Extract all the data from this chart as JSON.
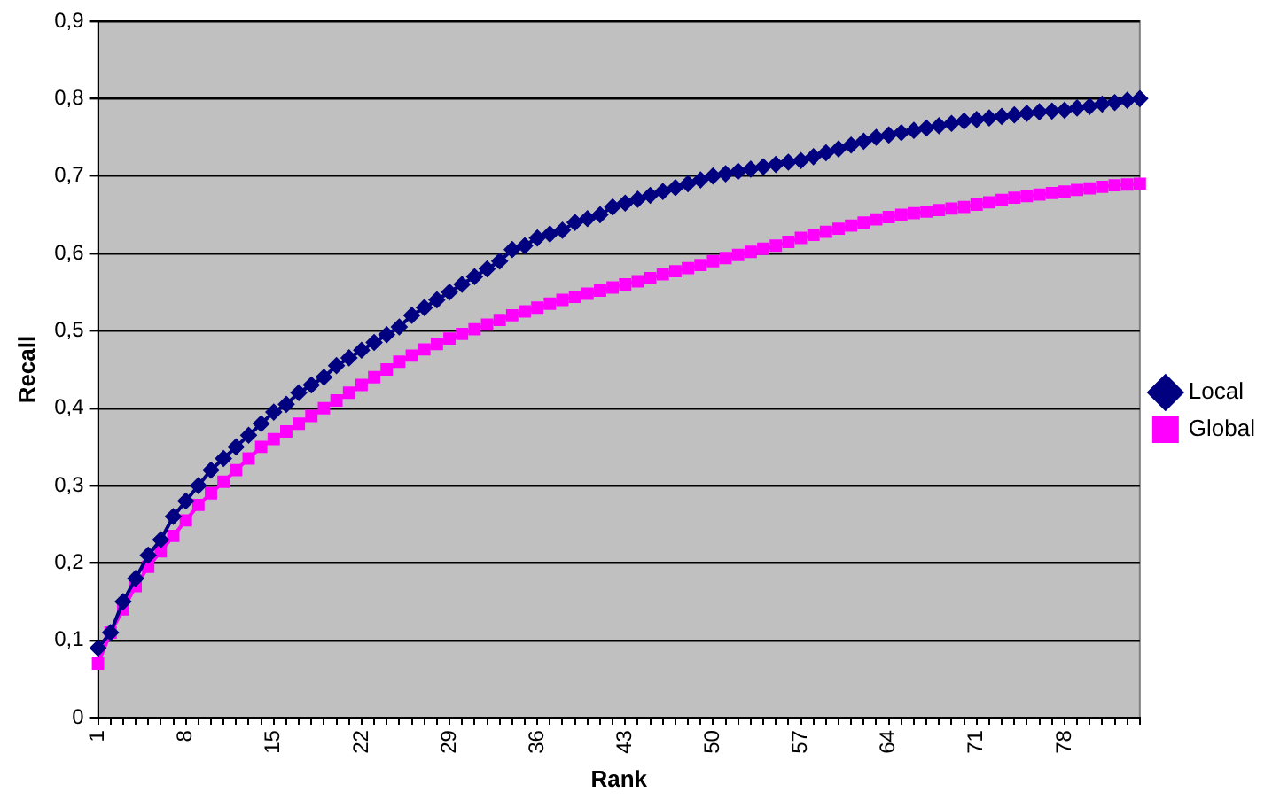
{
  "chart_data": {
    "type": "line",
    "xlabel": "Rank",
    "ylabel": "Recall",
    "categories": [
      "1",
      null,
      null,
      null,
      null,
      null,
      null,
      "8",
      null,
      null,
      null,
      null,
      null,
      null,
      "15",
      null,
      null,
      null,
      null,
      null,
      null,
      "22",
      null,
      null,
      null,
      null,
      null,
      null,
      "29",
      null,
      null,
      null,
      null,
      null,
      null,
      "36",
      null,
      null,
      null,
      null,
      null,
      null,
      "43",
      null,
      null,
      null,
      null,
      null,
      null,
      "50",
      null,
      null,
      null,
      null,
      null,
      null,
      "57",
      null,
      null,
      null,
      null,
      null,
      null,
      "64",
      null,
      null,
      null,
      null,
      null,
      null,
      "71",
      null,
      null,
      null,
      null,
      null,
      null,
      "78",
      null,
      null,
      null,
      null,
      null,
      null
    ],
    "series": [
      {
        "name": "Local",
        "color": "#000080",
        "marker": "diamond",
        "values": [
          0.09,
          0.11,
          0.15,
          0.18,
          0.21,
          0.23,
          0.26,
          0.28,
          0.3,
          0.32,
          0.335,
          0.35,
          0.365,
          0.38,
          0.395,
          0.405,
          0.42,
          0.43,
          0.44,
          0.455,
          0.465,
          0.475,
          0.485,
          0.495,
          0.505,
          0.52,
          0.53,
          0.54,
          0.55,
          0.56,
          0.57,
          0.58,
          0.59,
          0.605,
          0.61,
          0.62,
          0.625,
          0.63,
          0.64,
          0.645,
          0.65,
          0.66,
          0.665,
          0.67,
          0.675,
          0.68,
          0.685,
          0.69,
          0.695,
          0.7,
          0.703,
          0.706,
          0.709,
          0.712,
          0.715,
          0.718,
          0.72,
          0.725,
          0.73,
          0.735,
          0.74,
          0.745,
          0.75,
          0.753,
          0.756,
          0.759,
          0.762,
          0.765,
          0.768,
          0.771,
          0.773,
          0.775,
          0.777,
          0.779,
          0.781,
          0.783,
          0.784,
          0.785,
          0.788,
          0.79,
          0.793,
          0.795,
          0.798,
          0.8
        ]
      },
      {
        "name": "Global",
        "color": "#ff00ff",
        "marker": "square",
        "values": [
          0.07,
          0.11,
          0.14,
          0.17,
          0.195,
          0.215,
          0.235,
          0.255,
          0.275,
          0.29,
          0.305,
          0.32,
          0.335,
          0.35,
          0.36,
          0.37,
          0.38,
          0.39,
          0.4,
          0.41,
          0.42,
          0.43,
          0.44,
          0.45,
          0.46,
          0.468,
          0.476,
          0.483,
          0.49,
          0.496,
          0.502,
          0.508,
          0.514,
          0.52,
          0.525,
          0.53,
          0.535,
          0.54,
          0.544,
          0.548,
          0.552,
          0.556,
          0.56,
          0.564,
          0.568,
          0.573,
          0.577,
          0.581,
          0.585,
          0.59,
          0.594,
          0.598,
          0.602,
          0.606,
          0.61,
          0.615,
          0.62,
          0.624,
          0.628,
          0.632,
          0.636,
          0.64,
          0.644,
          0.647,
          0.65,
          0.652,
          0.654,
          0.656,
          0.658,
          0.66,
          0.663,
          0.666,
          0.669,
          0.672,
          0.674,
          0.676,
          0.678,
          0.68,
          0.682,
          0.684,
          0.686,
          0.688,
          0.689,
          0.69
        ]
      }
    ],
    "ylim": [
      0,
      0.9
    ],
    "yticks": [
      0,
      {
        "value": 0.1,
        "label": "0,1"
      },
      {
        "value": 0.2,
        "label": "0,2"
      },
      {
        "value": 0.3,
        "label": "0,3"
      },
      {
        "value": 0.4,
        "label": "0,4"
      },
      {
        "value": 0.5,
        "label": "0,5"
      },
      {
        "value": 0.6,
        "label": "0,6"
      },
      {
        "value": 0.7,
        "label": "0,7"
      },
      {
        "value": 0.8,
        "label": "0,8"
      },
      {
        "value": 0.9,
        "label": "0,9"
      }
    ],
    "grid": "y",
    "legend": "right",
    "line_style": "solid"
  }
}
